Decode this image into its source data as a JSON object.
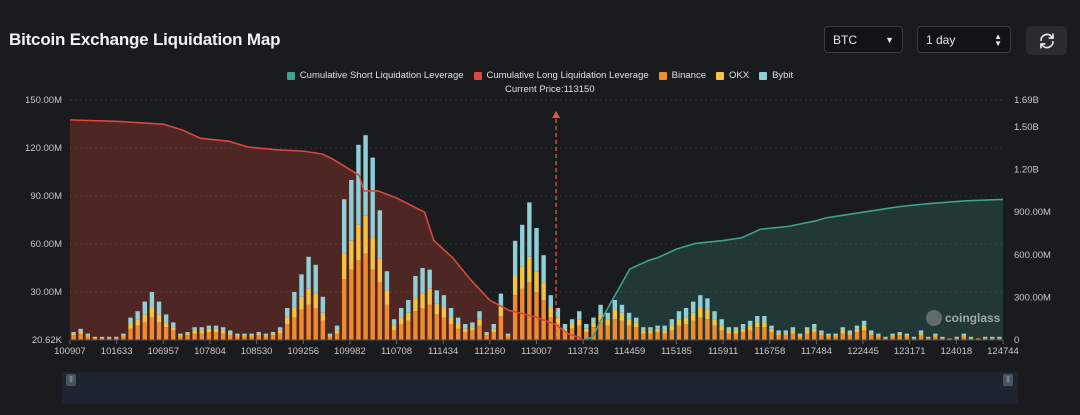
{
  "header": {
    "title": "Bitcoin Exchange Liquidation Map"
  },
  "controls": {
    "coin": {
      "value": "BTC",
      "icon": "caret-down-icon"
    },
    "range": {
      "value": "1 day",
      "icon": "stepper-icon"
    },
    "refresh": {
      "icon": "refresh-icon"
    }
  },
  "legend": {
    "items": [
      {
        "label": "Cumulative Short Liquidation Leverage",
        "color": "#3fa08f"
      },
      {
        "label": "Cumulative Long Liquidation Leverage",
        "color": "#d9483b"
      },
      {
        "label": "Binance",
        "color": "#f08a2c"
      },
      {
        "label": "OKX",
        "color": "#f5c242"
      },
      {
        "label": "Bybit",
        "color": "#8fcfd6"
      }
    ]
  },
  "current_price_label": "Current Price:113150",
  "watermark": "coinglass",
  "chart_data": {
    "type": "bar",
    "title": "Bitcoin Exchange Liquidation Map",
    "current_price": 113150,
    "x_ticks": [
      "100907",
      "101633",
      "106957",
      "107804",
      "108530",
      "109256",
      "109982",
      "110708",
      "111434",
      "112160",
      "113007",
      "113733",
      "114459",
      "115185",
      "115911",
      "116758",
      "117484",
      "122445",
      "123171",
      "124018",
      "124744"
    ],
    "y_left": {
      "ticks": [
        "20.62K",
        "30.00M",
        "60.00M",
        "90.00M",
        "120.00M",
        "150.00M"
      ],
      "values": [
        0,
        30,
        60,
        90,
        120,
        150
      ],
      "range": [
        0,
        150
      ]
    },
    "y_right": {
      "ticks": [
        "0",
        "300.00M",
        "600.00M",
        "900.00M",
        "1.20B",
        "1.50B",
        "1.69B"
      ],
      "values": [
        0,
        300,
        600,
        900,
        1200,
        1500,
        1690
      ],
      "range": [
        0,
        1690
      ]
    },
    "series": [
      {
        "name": "Binance",
        "color": "#f08a2c",
        "values": [
          3,
          4,
          2,
          1,
          1,
          1,
          1,
          2,
          7,
          9,
          11,
          14,
          11,
          8,
          6,
          2,
          3,
          4,
          4,
          5,
          5,
          4,
          3,
          2,
          2,
          2,
          3,
          2,
          3,
          4,
          10,
          14,
          19,
          22,
          20,
          12,
          2,
          4,
          38,
          44,
          50,
          54,
          44,
          36,
          22,
          6,
          10,
          12,
          18,
          20,
          22,
          16,
          14,
          10,
          7,
          5,
          6,
          9,
          3,
          5,
          15,
          2,
          28,
          32,
          36,
          30,
          25,
          14,
          10,
          5,
          7,
          9,
          5,
          8,
          11,
          9,
          13,
          12,
          9,
          8,
          4,
          4,
          5,
          4,
          6,
          9,
          10,
          12,
          14,
          13,
          9,
          6,
          4,
          4,
          5,
          6,
          8,
          8,
          5,
          3,
          3,
          4,
          2,
          4,
          5,
          3,
          2,
          2,
          4,
          3,
          5,
          6,
          3,
          2,
          1,
          2,
          3,
          2,
          1,
          3,
          1,
          2,
          1,
          1,
          1,
          2,
          1,
          1,
          1,
          1,
          1
        ]
      },
      {
        "name": "OKX",
        "color": "#f5c242",
        "values": [
          1,
          1,
          1,
          1,
          0,
          0,
          0,
          1,
          3,
          4,
          5,
          6,
          5,
          3,
          2,
          1,
          1,
          2,
          2,
          2,
          2,
          2,
          1,
          1,
          1,
          1,
          1,
          1,
          1,
          2,
          4,
          6,
          8,
          10,
          9,
          5,
          1,
          2,
          16,
          18,
          22,
          24,
          20,
          15,
          9,
          3,
          4,
          5,
          8,
          9,
          10,
          7,
          6,
          4,
          3,
          2,
          2,
          4,
          1,
          2,
          6,
          1,
          12,
          14,
          16,
          13,
          11,
          6,
          4,
          2,
          3,
          4,
          2,
          3,
          5,
          4,
          6,
          5,
          4,
          3,
          2,
          2,
          2,
          2,
          3,
          4,
          4,
          5,
          6,
          6,
          4,
          3,
          2,
          2,
          2,
          3,
          3,
          3,
          2,
          1,
          1,
          2,
          1,
          2,
          2,
          1,
          1,
          1,
          2,
          1,
          2,
          3,
          1,
          1,
          0,
          1,
          1,
          1,
          0,
          1,
          0,
          1,
          0,
          0,
          0,
          1,
          0,
          0,
          0,
          0,
          0
        ]
      },
      {
        "name": "Bybit",
        "color": "#8fcfd6",
        "values": [
          1,
          2,
          1,
          0,
          1,
          1,
          1,
          1,
          4,
          5,
          8,
          10,
          8,
          5,
          3,
          1,
          1,
          2,
          2,
          2,
          2,
          2,
          2,
          1,
          1,
          1,
          1,
          1,
          1,
          2,
          6,
          10,
          14,
          20,
          18,
          10,
          1,
          3,
          34,
          38,
          50,
          50,
          50,
          30,
          12,
          4,
          6,
          8,
          14,
          16,
          12,
          8,
          8,
          6,
          4,
          3,
          3,
          5,
          1,
          3,
          8,
          1,
          22,
          26,
          34,
          27,
          17,
          8,
          6,
          3,
          3,
          5,
          3,
          3,
          6,
          4,
          6,
          5,
          4,
          3,
          2,
          2,
          2,
          3,
          4,
          5,
          6,
          7,
          8,
          7,
          5,
          4,
          2,
          2,
          3,
          3,
          4,
          4,
          2,
          2,
          2,
          2,
          1,
          2,
          3,
          2,
          1,
          1,
          2,
          2,
          2,
          3,
          2,
          1,
          1,
          1,
          1,
          1,
          1,
          2,
          1,
          1,
          1,
          0,
          1,
          1,
          1,
          0,
          1,
          1,
          1
        ]
      },
      {
        "name": "Cumulative Long Liquidation Leverage",
        "color": "#d9483b",
        "x": [
          0,
          0.05,
          0.1,
          0.12,
          0.14,
          0.17,
          0.19,
          0.22,
          0.25,
          0.27,
          0.28,
          0.31,
          0.315,
          0.33,
          0.35,
          0.38,
          0.39,
          0.41,
          0.43,
          0.45,
          0.47,
          0.5,
          0.52,
          0.535,
          0.545,
          0.55
        ],
        "values": [
          1550,
          1540,
          1520,
          1480,
          1420,
          1400,
          1360,
          1340,
          1330,
          1310,
          1280,
          1160,
          1050,
          1050,
          1000,
          900,
          700,
          580,
          420,
          280,
          210,
          160,
          110,
          40,
          20,
          0
        ]
      },
      {
        "name": "Cumulative Short Liquidation Leverage",
        "color": "#3fa08f",
        "x": [
          0.55,
          0.56,
          0.57,
          0.6,
          0.62,
          0.63,
          0.65,
          0.67,
          0.7,
          0.72,
          0.74,
          0.77,
          0.8,
          0.81,
          0.83,
          0.87,
          0.89,
          0.92,
          0.96,
          1.0
        ],
        "values": [
          0,
          20,
          150,
          500,
          560,
          580,
          640,
          680,
          700,
          720,
          780,
          800,
          840,
          860,
          880,
          920,
          940,
          960,
          980,
          990
        ]
      }
    ]
  }
}
